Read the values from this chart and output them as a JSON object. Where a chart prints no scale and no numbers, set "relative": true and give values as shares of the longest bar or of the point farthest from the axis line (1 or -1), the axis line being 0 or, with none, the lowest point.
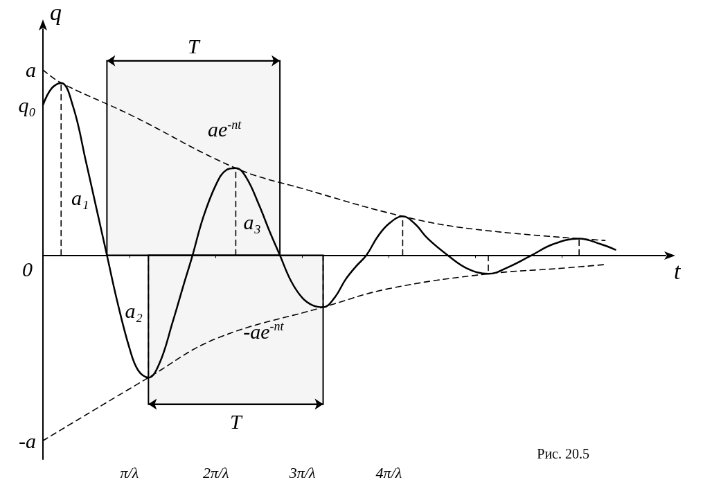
{
  "chart_data": {
    "type": "line",
    "xlabel": "t",
    "ylabel": "q",
    "xlim": [
      0,
      7.2
    ],
    "relative": true,
    "xticks": [
      {
        "value": 1,
        "label": "π/λ"
      },
      {
        "value": 2,
        "label": "2π/λ"
      },
      {
        "value": 3,
        "label": "3π/λ"
      },
      {
        "value": 4,
        "label": "4π/λ"
      },
      {
        "value": 5,
        "label": null
      },
      {
        "value": 6,
        "label": null
      }
    ],
    "grid": false,
    "marker": "none",
    "series": [
      {
        "color": "#000000",
        "line_style": "solid",
        "x": [
          0,
          0.1,
          0.21,
          0.35,
          0.5,
          0.62,
          0.74,
          0.86,
          1.0,
          1.1,
          1.22,
          1.35,
          1.5,
          1.62,
          1.73,
          1.85,
          2.0,
          2.12,
          2.23,
          2.35,
          2.5,
          2.62,
          2.74,
          2.87,
          3.0,
          3.12,
          3.24,
          3.37,
          3.5,
          3.62,
          3.74,
          3.87,
          4.0,
          4.16,
          4.3,
          4.45,
          4.68,
          4.9,
          5.15,
          5.4,
          5.65,
          5.9,
          6.2,
          6.45,
          6.62
        ],
        "values": [
          0.81,
          0.9,
          0.93,
          0.8,
          0.5,
          0.25,
          0,
          -0.25,
          -0.5,
          -0.62,
          -0.66,
          -0.58,
          -0.36,
          -0.17,
          0,
          0.2,
          0.38,
          0.46,
          0.47,
          0.42,
          0.27,
          0.13,
          0,
          -0.14,
          -0.23,
          -0.27,
          -0.28,
          -0.23,
          -0.13,
          -0.06,
          0,
          0.1,
          0.17,
          0.21,
          0.17,
          0.09,
          0,
          -0.07,
          -0.1,
          -0.06,
          0,
          0.06,
          0.09,
          0.06,
          0.03
        ]
      },
      {
        "color": "#000000",
        "line_style": "dashed",
        "x": [
          0,
          0.21,
          1,
          2.23,
          3,
          4.16,
          5,
          6.5
        ],
        "values": [
          1,
          0.93,
          0.76,
          0.47,
          0.36,
          0.21,
          0.14,
          0.08
        ]
      },
      {
        "color": "#000000",
        "line_style": "dashed",
        "x": [
          0,
          1.22,
          2,
          3.24,
          4,
          5.15,
          6,
          6.5
        ],
        "values": [
          -1,
          -0.66,
          -0.45,
          -0.28,
          -0.18,
          -0.1,
          -0.07,
          -0.05
        ]
      },
      {
        "color": "#000000",
        "line_style": "dashed",
        "x": [
          0.21,
          0.21
        ],
        "values": [
          0,
          0.93
        ]
      },
      {
        "color": "#000000",
        "line_style": "dashed",
        "x": [
          1.22,
          1.22
        ],
        "values": [
          0,
          -0.66
        ]
      },
      {
        "color": "#000000",
        "line_style": "dashed",
        "x": [
          2.23,
          2.23
        ],
        "values": [
          0,
          0.47
        ]
      },
      {
        "color": "#000000",
        "line_style": "dashed",
        "x": [
          3.24,
          3.24
        ],
        "values": [
          0,
          -0.28
        ]
      },
      {
        "color": "#000000",
        "line_style": "dashed",
        "x": [
          4.16,
          4.16
        ],
        "values": [
          0,
          0.21
        ]
      },
      {
        "color": "#000000",
        "line_style": "dashed",
        "x": [
          5.15,
          5.15
        ],
        "values": [
          0,
          -0.1
        ]
      },
      {
        "color": "#000000",
        "line_style": "dashed",
        "x": [
          6.2,
          6.2
        ],
        "values": [
          0,
          0.09
        ]
      }
    ],
    "bands": [
      {
        "axis": "x",
        "from": 0.74,
        "to": 2.74,
        "label": "T"
      },
      {
        "axis": "x",
        "from": 1.22,
        "to": 3.24,
        "label": "T"
      }
    ],
    "annotations": [
      "a",
      "q₀",
      "-a",
      "0",
      "ae$^{-nt}$",
      "-ae$^{-nt}$",
      "a₁",
      "a₂",
      "a₃",
      "Рис. 20.5"
    ]
  }
}
